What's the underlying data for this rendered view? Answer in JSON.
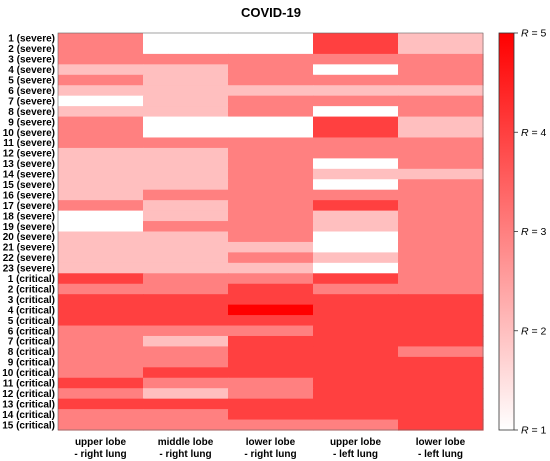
{
  "chart_data": {
    "type": "heatmap",
    "title": "COVID-19",
    "columns": [
      [
        "upper lobe",
        "- right lung"
      ],
      [
        "middle lobe",
        "- right lung"
      ],
      [
        "lower lobe",
        "- right lung"
      ],
      [
        "upper lobe",
        "- left lung"
      ],
      [
        "lower lobe",
        "- left lung"
      ]
    ],
    "rows": [
      "1 (severe)",
      "2 (severe)",
      "3 (severe)",
      "4 (severe)",
      "5 (severe)",
      "6 (severe)",
      "7 (severe)",
      "8 (severe)",
      "9 (severe)",
      "10 (severe)",
      "11 (severe)",
      "12 (severe)",
      "13 (severe)",
      "14 (severe)",
      "15 (severe)",
      "16 (severe)",
      "17 (severe)",
      "18 (severe)",
      "19 (severe)",
      "20 (severe)",
      "21 (severe)",
      "22 (severe)",
      "23 (severe)",
      "1 (critical)",
      "2 (critical)",
      "3 (critical)",
      "4 (critical)",
      "5 (critical)",
      "6 (critical)",
      "7 (critical)",
      "8 (critical)",
      "9 (critical)",
      "10 (critical)",
      "11 (critical)",
      "12 (critical)",
      "13 (critical)",
      "14 (critical)",
      "15 (critical)"
    ],
    "values": [
      [
        3,
        1,
        1,
        4,
        2
      ],
      [
        3,
        1,
        1,
        4,
        2
      ],
      [
        3,
        3,
        3,
        3,
        3
      ],
      [
        2,
        2,
        3,
        1,
        3
      ],
      [
        3,
        2,
        3,
        3,
        3
      ],
      [
        2,
        2,
        2,
        2,
        2
      ],
      [
        1,
        2,
        3,
        3,
        3
      ],
      [
        2,
        2,
        3,
        1,
        3
      ],
      [
        3,
        1,
        1,
        4,
        2
      ],
      [
        3,
        1,
        1,
        4,
        2
      ],
      [
        3,
        3,
        3,
        3,
        3
      ],
      [
        2,
        2,
        3,
        3,
        3
      ],
      [
        2,
        2,
        3,
        1,
        3
      ],
      [
        2,
        2,
        3,
        2,
        2
      ],
      [
        2,
        2,
        3,
        1,
        3
      ],
      [
        2,
        3,
        3,
        3,
        3
      ],
      [
        3,
        2,
        3,
        4,
        3
      ],
      [
        1,
        2,
        3,
        2,
        3
      ],
      [
        1,
        3,
        3,
        2,
        3
      ],
      [
        2,
        2,
        3,
        1,
        3
      ],
      [
        2,
        2,
        2,
        1,
        3
      ],
      [
        2,
        2,
        3,
        2,
        3
      ],
      [
        2,
        2,
        2,
        1,
        3
      ],
      [
        4,
        3,
        3,
        4,
        3
      ],
      [
        3,
        3,
        4,
        3,
        3
      ],
      [
        4,
        4,
        4,
        4,
        4
      ],
      [
        4,
        4,
        5,
        4,
        4
      ],
      [
        4,
        4,
        4,
        4,
        4
      ],
      [
        3,
        3,
        3,
        4,
        4
      ],
      [
        3,
        2,
        4,
        4,
        4
      ],
      [
        3,
        3,
        4,
        4,
        3
      ],
      [
        3,
        3,
        4,
        4,
        4
      ],
      [
        3,
        4,
        4,
        4,
        4
      ],
      [
        4,
        3,
        3,
        4,
        4
      ],
      [
        3,
        2,
        3,
        4,
        4
      ],
      [
        4,
        4,
        4,
        4,
        4
      ],
      [
        3,
        3,
        4,
        4,
        4
      ],
      [
        3,
        3,
        3,
        3,
        4
      ]
    ],
    "colorbar": {
      "min": 1,
      "max": 5,
      "ticks": [
        "R = 1",
        "R = 2",
        "R = 3",
        "R = 4",
        "R = 5"
      ],
      "color_low": "#ffffff",
      "color_high": "#ff0000"
    }
  }
}
